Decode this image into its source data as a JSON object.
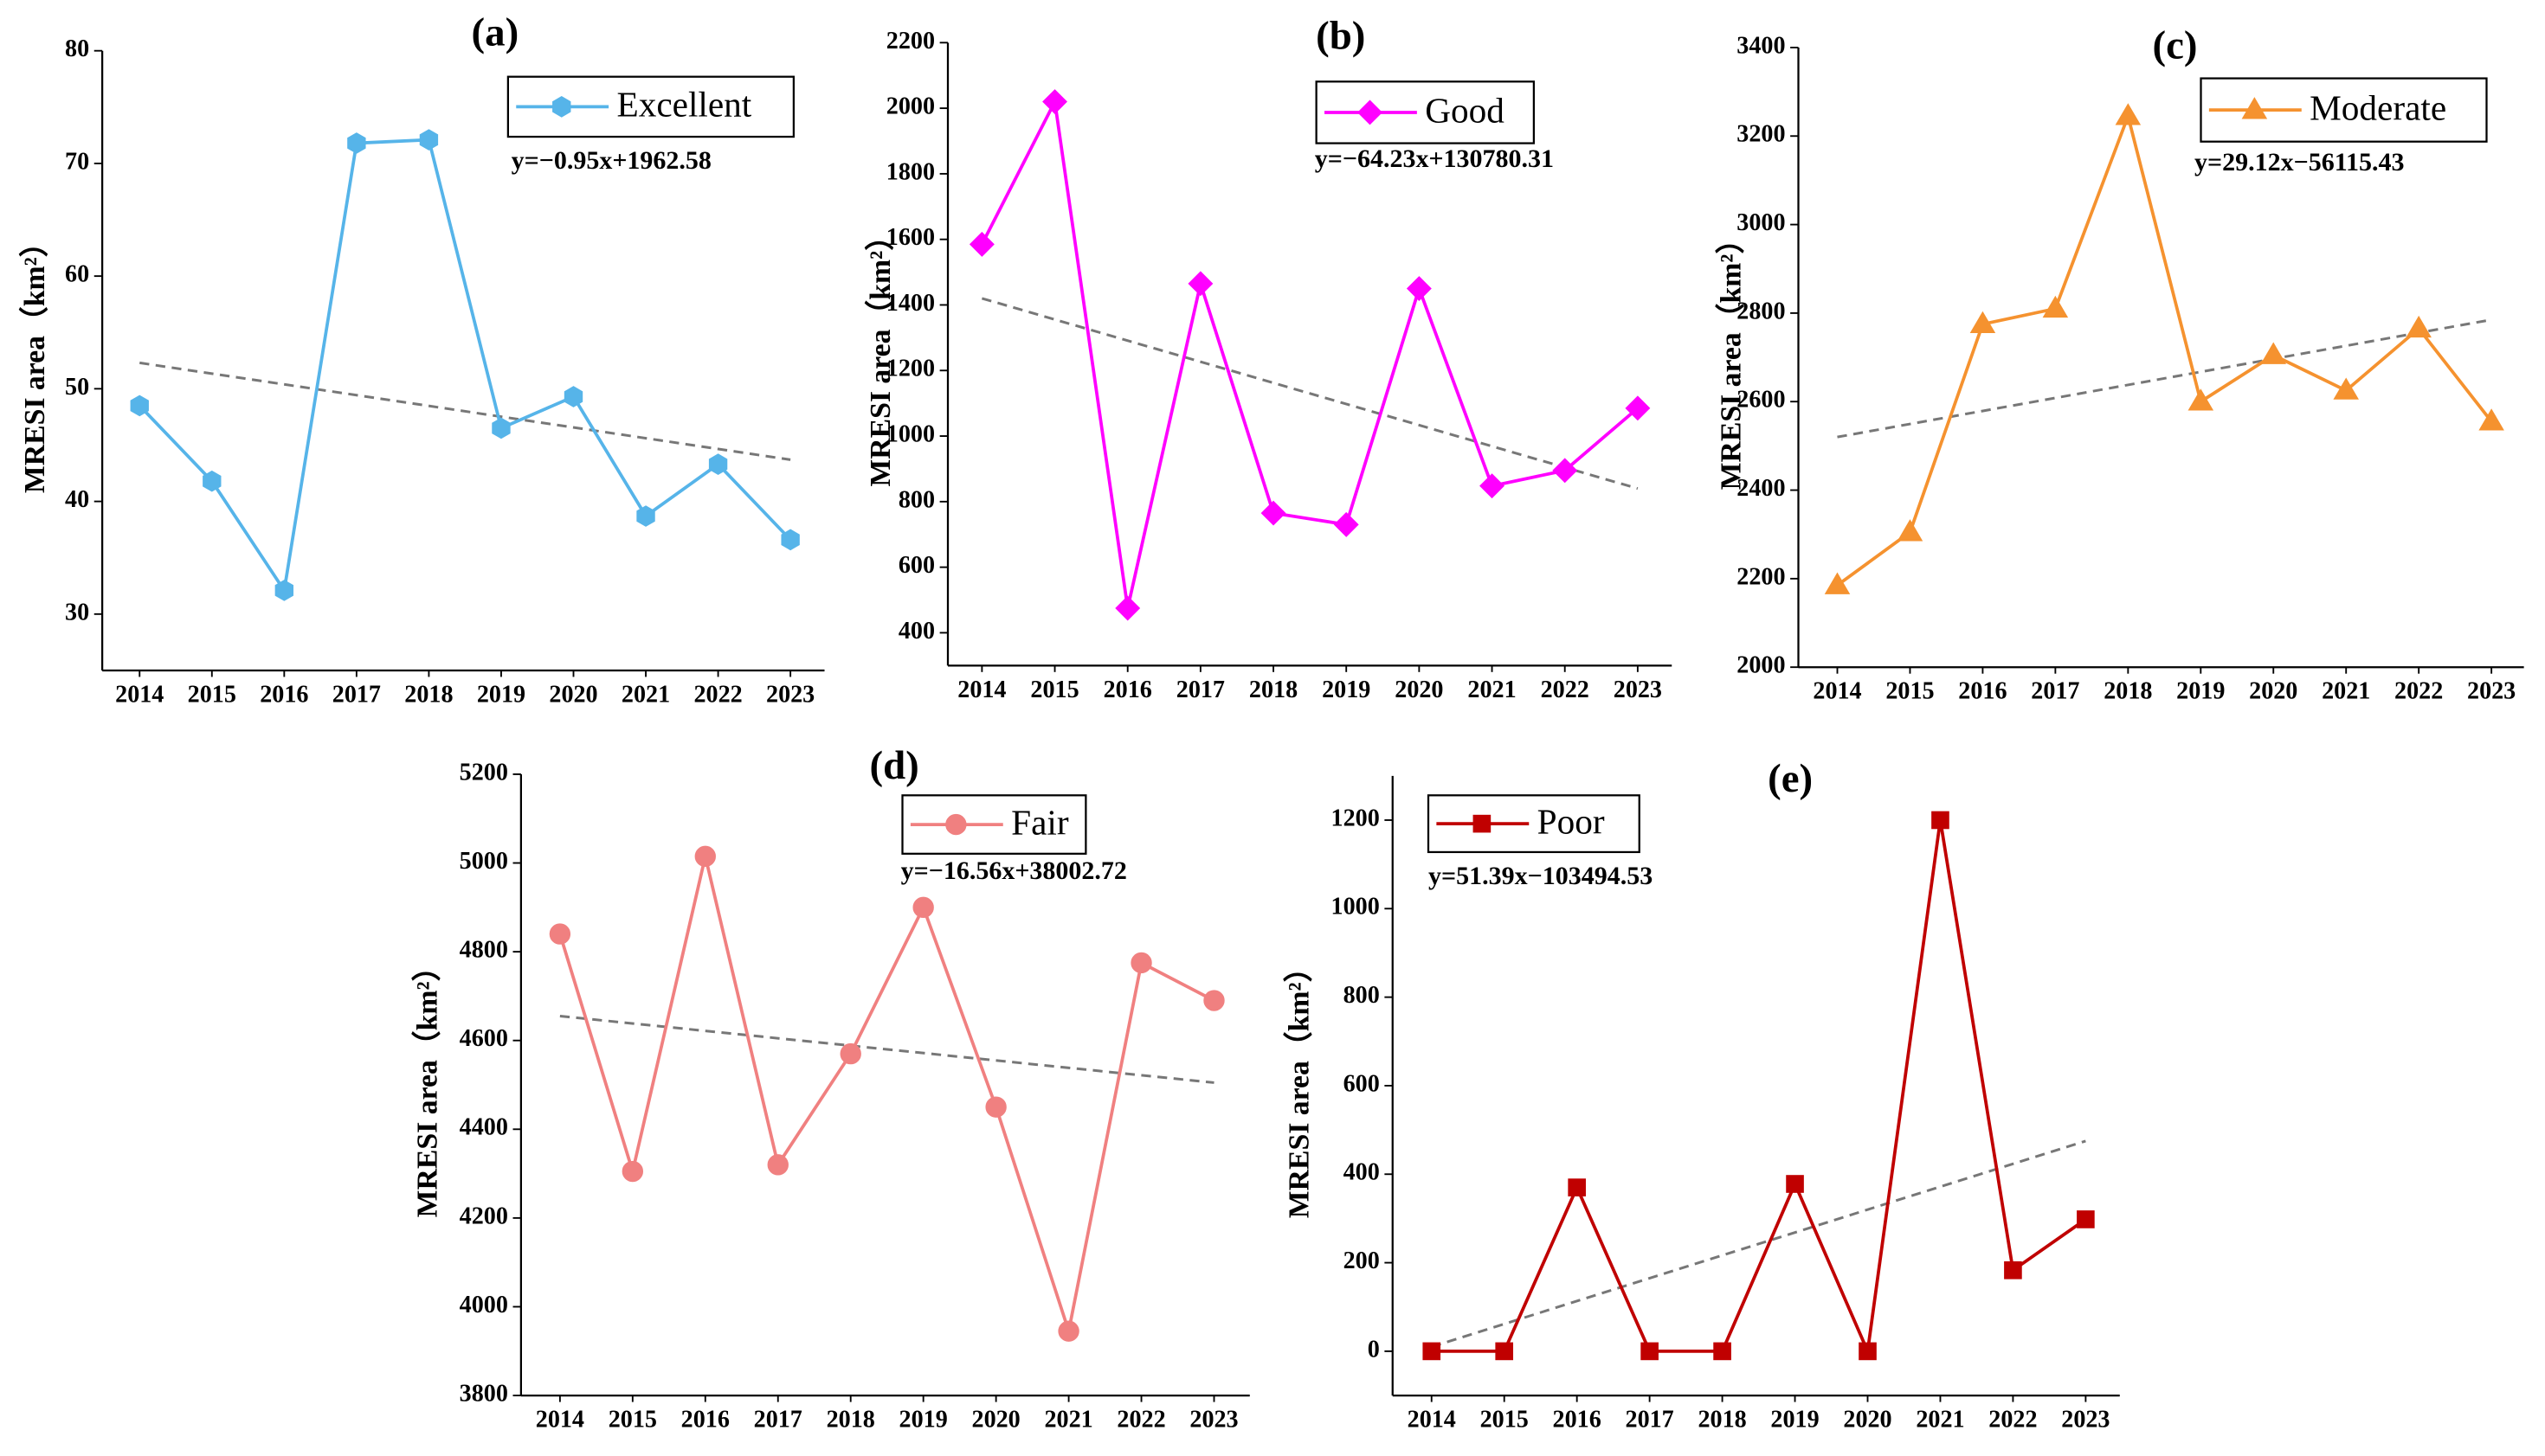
{
  "chart_data": [
    {
      "type": "line",
      "title": "(a)",
      "y_label": "MRESI area（km²）",
      "categories": [
        "2014",
        "2015",
        "2016",
        "2017",
        "2018",
        "2019",
        "2020",
        "2021",
        "2022",
        "2023"
      ],
      "series": [
        {
          "name": "Excellent",
          "color": "#56b4e9",
          "marker": "hexagon",
          "values": [
            48.5,
            41.8,
            32.1,
            71.8,
            72.1,
            46.5,
            49.3,
            38.7,
            43.3,
            36.6
          ]
        }
      ],
      "trend": {
        "label": "y=−0.95x+1962.58",
        "values": [
          52.3,
          43.7
        ]
      },
      "ylim": [
        25,
        80
      ],
      "yticks": [
        30,
        40,
        50,
        60,
        70,
        80
      ]
    },
    {
      "type": "line",
      "title": "(b)",
      "y_label": "MRESI area（km²）",
      "categories": [
        "2014",
        "2015",
        "2016",
        "2017",
        "2018",
        "2019",
        "2020",
        "2021",
        "2022",
        "2023"
      ],
      "series": [
        {
          "name": "Good",
          "color": "#ff00ff",
          "marker": "diamond",
          "values": [
            1585,
            2020,
            475,
            1465,
            765,
            730,
            1450,
            848,
            895,
            1085
          ]
        }
      ],
      "trend": {
        "label": "y=−64.23x+130780.31",
        "values": [
          1420,
          840
        ]
      },
      "ylim": [
        300,
        2200
      ],
      "yticks": [
        400,
        600,
        800,
        1000,
        1200,
        1400,
        1600,
        1800,
        2000,
        2200
      ]
    },
    {
      "type": "line",
      "title": "(c)",
      "y_label": "MRESI area（km²）",
      "categories": [
        "2014",
        "2015",
        "2016",
        "2017",
        "2018",
        "2019",
        "2020",
        "2021",
        "2022",
        "2023"
      ],
      "series": [
        {
          "name": "Moderate",
          "color": "#f5922f",
          "marker": "triangle",
          "values": [
            2185,
            2305,
            2775,
            2810,
            3245,
            2600,
            2705,
            2625,
            2765,
            2555
          ]
        }
      ],
      "trend": {
        "label": "y=29.12x−56115.43",
        "values": [
          2520,
          2785
        ]
      },
      "ylim": [
        2000,
        3400
      ],
      "yticks": [
        2000,
        2200,
        2400,
        2600,
        2800,
        3000,
        3200,
        3400
      ]
    },
    {
      "type": "line",
      "title": "(d)",
      "y_label": "MRESI area（km²）",
      "categories": [
        "2014",
        "2015",
        "2016",
        "2017",
        "2018",
        "2019",
        "2020",
        "2021",
        "2022",
        "2023"
      ],
      "series": [
        {
          "name": "Fair",
          "color": "#f08080",
          "marker": "circle",
          "values": [
            4840,
            4305,
            5015,
            4320,
            4570,
            4900,
            4450,
            3945,
            4775,
            4690
          ]
        }
      ],
      "trend": {
        "label": "y=−16.56x+38002.72",
        "values": [
          4655,
          4505
        ]
      },
      "ylim": [
        3800,
        5200
      ],
      "yticks": [
        3800,
        4000,
        4200,
        4400,
        4600,
        4800,
        5000,
        5200
      ]
    },
    {
      "type": "line",
      "title": "(e)",
      "y_label": "MRESI area（km²）",
      "categories": [
        "2014",
        "2015",
        "2016",
        "2017",
        "2018",
        "2019",
        "2020",
        "2021",
        "2022",
        "2023"
      ],
      "series": [
        {
          "name": "Poor",
          "color": "#c00000",
          "marker": "square",
          "values": [
            0,
            0,
            370,
            0,
            0,
            378,
            0,
            1200,
            183,
            298
          ]
        }
      ],
      "trend": {
        "label": "y=51.39x−103494.53",
        "values": [
          10,
          475
        ]
      },
      "ylim": [
        -100,
        1300
      ],
      "yticks": [
        0,
        200,
        400,
        600,
        800,
        1000,
        1200
      ]
    }
  ]
}
